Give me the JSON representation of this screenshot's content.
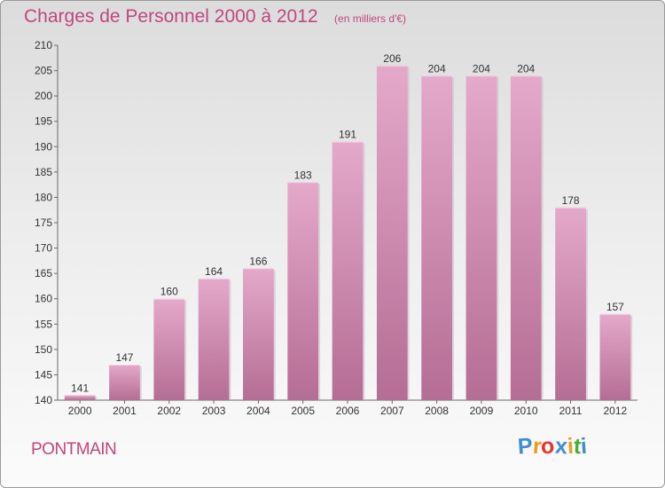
{
  "header": {
    "title": "Charges de Personnel 2000 à 2012",
    "subtitle": "(en milliers d'€)"
  },
  "footer": {
    "commune": "PONTMAIN"
  },
  "logo": {
    "letters": [
      "P",
      "r",
      "o",
      "x",
      "i",
      "t",
      "i"
    ],
    "colors": [
      "#3f8fd0",
      "#f29a1b",
      "#e2382c",
      "#3f8fd0",
      "#f29a1b",
      "#4aae3a",
      "#3f8fd0"
    ]
  },
  "colors": {
    "bar": "#d98cb4",
    "bar_light": "#e4a9ca",
    "bar_dark": "#b56d94",
    "text": "#c0477e"
  },
  "chart_data": {
    "type": "bar",
    "title": "Charges de Personnel 2000 à 2012",
    "subtitle": "(en milliers d'€)",
    "categories": [
      "2000",
      "2001",
      "2002",
      "2003",
      "2004",
      "2005",
      "2006",
      "2007",
      "2008",
      "2009",
      "2010",
      "2011",
      "2012"
    ],
    "values": [
      141,
      147,
      160,
      164,
      166,
      183,
      191,
      206,
      204,
      204,
      204,
      178,
      157
    ],
    "ylim": [
      140,
      210
    ],
    "yticks": [
      140,
      145,
      150,
      155,
      160,
      165,
      170,
      175,
      180,
      185,
      190,
      195,
      200,
      205,
      210
    ],
    "grid": false,
    "data_labels": true
  }
}
